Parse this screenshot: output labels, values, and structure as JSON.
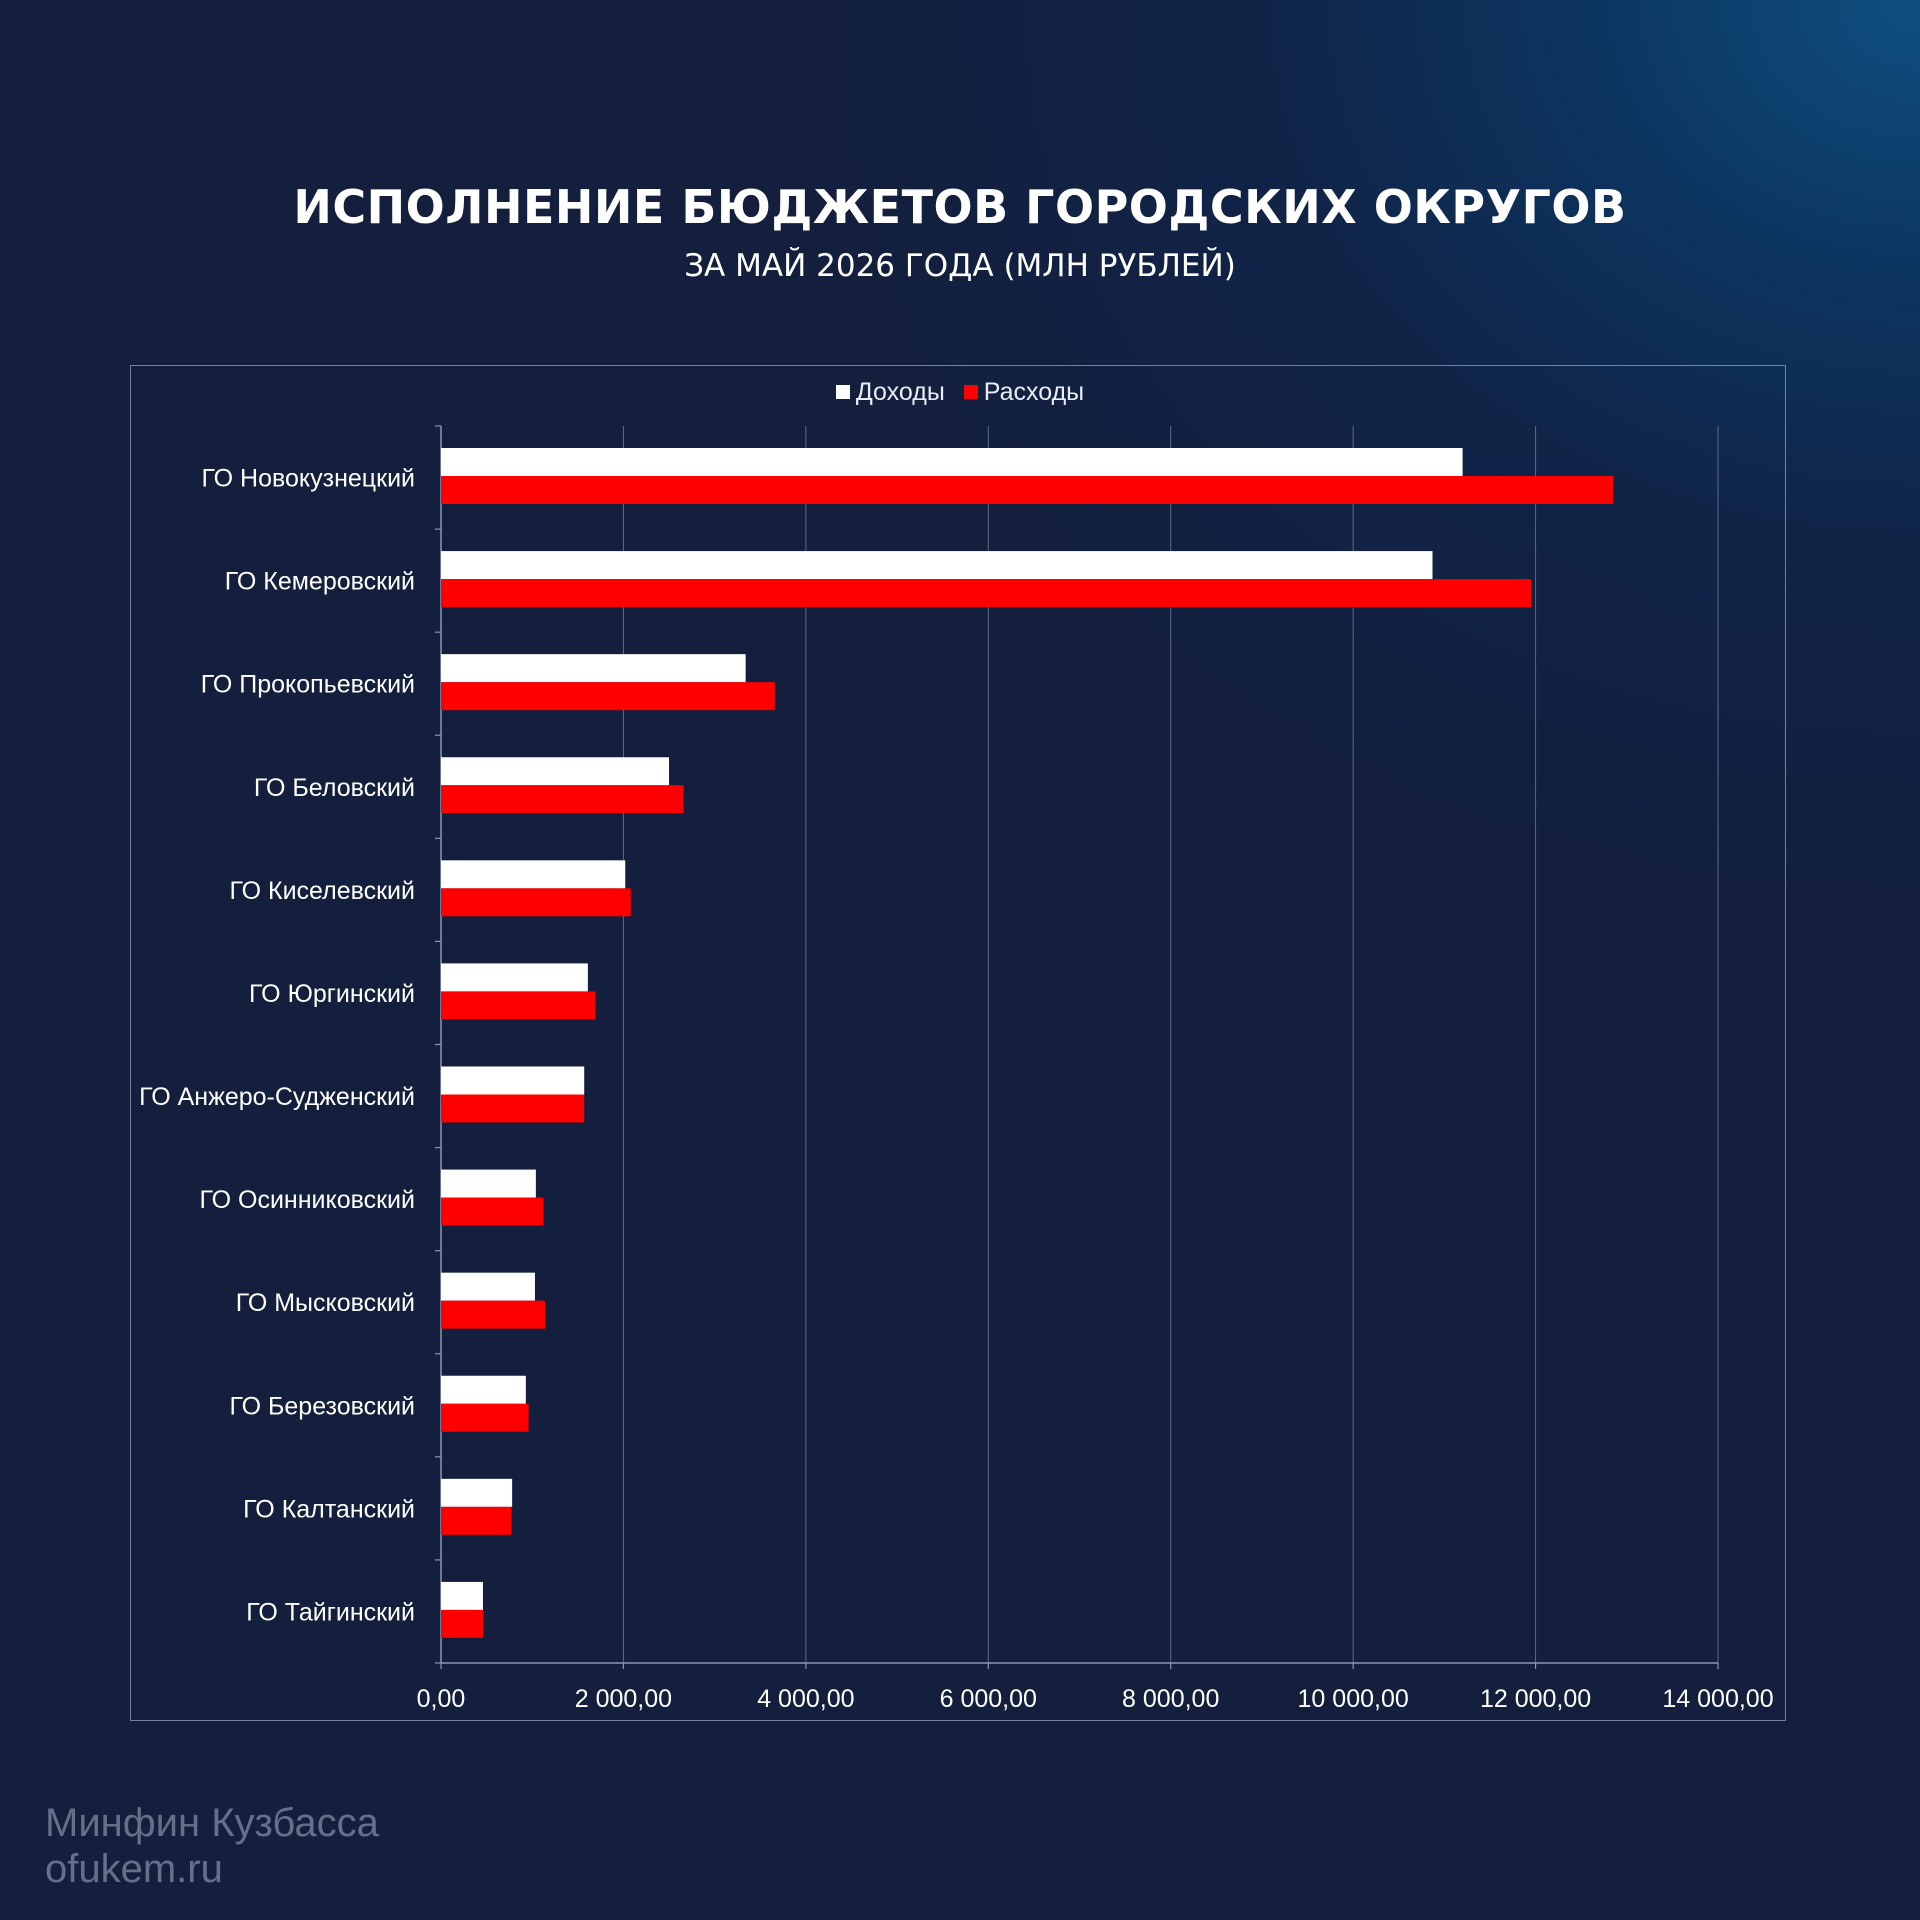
{
  "title": "ИСПОЛНЕНИЕ БЮДЖЕТОВ ГОРОДСКИХ ОКРУГОВ",
  "subtitle": "ЗА МАЙ 2026 ГОДА (МЛН РУБЛЕЙ)",
  "watermark": {
    "org": "Минфин Кузбасса",
    "site": "ofukem.ru"
  },
  "colors": {
    "income": "#ffffff",
    "expense": "#ff0000",
    "grid": "#5a6a8a",
    "text": "#ffffff"
  },
  "chart_data": {
    "type": "bar",
    "orientation": "horizontal",
    "categories": [
      "ГО Новокузнецкий",
      "ГО Кемеровский",
      "ГО Прокопьевский",
      "ГО Беловский",
      "ГО Киселевский",
      "ГО Юргинский",
      "ГО Анжеро-Судженский",
      "ГО Осинниковский",
      "ГО Мысковский",
      "ГО Березовский",
      "ГО Калтанский",
      "ГО Тайгинский"
    ],
    "series": [
      {
        "name": "Доходы",
        "color": "#ffffff",
        "values": [
          11200,
          10870,
          3340,
          2500,
          2020,
          1610,
          1570,
          1040,
          1030,
          930,
          780,
          460
        ]
      },
      {
        "name": "Расходы",
        "color": "#ff0000",
        "values": [
          12850,
          11950,
          3660,
          2660,
          2080,
          1690,
          1570,
          1120,
          1140,
          960,
          770,
          460
        ]
      }
    ],
    "xlim": [
      0,
      14000
    ],
    "xticks": [
      0,
      2000,
      4000,
      6000,
      8000,
      10000,
      12000,
      14000
    ],
    "xtick_labels": [
      "0,00",
      "2 000,00",
      "4 000,00",
      "6 000,00",
      "8 000,00",
      "10 000,00",
      "12 000,00",
      "14 000,00"
    ],
    "grid": true,
    "legend_position": "top-center"
  }
}
